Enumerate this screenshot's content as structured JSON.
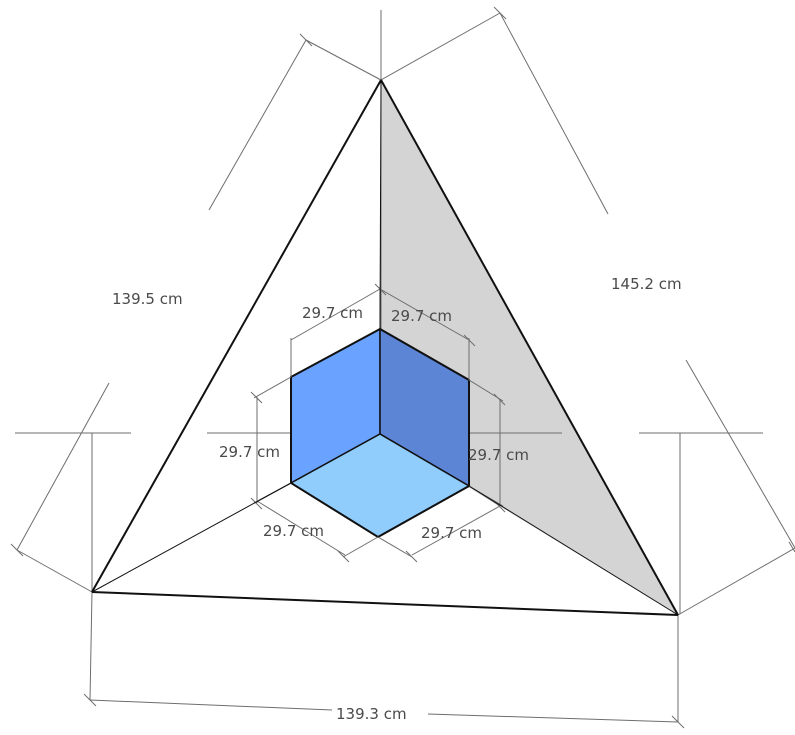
{
  "colors": {
    "background": "#ffffff",
    "shaded_face": "#d4d4d4",
    "cube_left_face": "#6aa3ff",
    "cube_right_face": "#5c85d6",
    "cube_bottom_face": "#90cdfd",
    "edge": "#111111",
    "dimension_line": "#6e6e6e",
    "dimension_text": "#4a4a4a"
  },
  "dimensions": {
    "tetra_left_edge": "139.5 cm",
    "tetra_right_edge": "145.2 cm",
    "tetra_bottom_edge": "139.3 cm",
    "cube_top_left": "29.7 cm",
    "cube_top_right": "29.7 cm",
    "cube_left_height": "29.7 cm",
    "cube_right_height": "29.7 cm",
    "cube_bottom_left": "29.7 cm",
    "cube_bottom_right": "29.7 cm"
  }
}
